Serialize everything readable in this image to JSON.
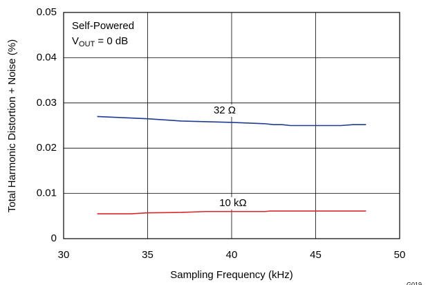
{
  "chart_data": {
    "type": "line",
    "x_label": "Sampling Frequency (kHz)",
    "y_label": "Total Harmonic Distortion + Noise (%)",
    "annotations": [
      "Self-Powered",
      {
        "main": "V",
        "sub": "OUT",
        "rest": " = 0 dB"
      }
    ],
    "figure_id": "G019",
    "xlim": [
      30,
      50
    ],
    "xticks": [
      30,
      35,
      40,
      45,
      50
    ],
    "ylim": [
      0,
      0.05
    ],
    "yticks": [
      0,
      0.01,
      0.02,
      0.03,
      0.04,
      0.05
    ],
    "grid": true,
    "series": [
      {
        "name": "32 Ω",
        "color": "#1f3a93",
        "x": [
          32,
          35,
          37,
          40,
          42,
          42.5,
          43,
          43.5,
          45,
          46.5,
          47.2,
          48
        ],
        "values": [
          0.027,
          0.0265,
          0.026,
          0.0257,
          0.0254,
          0.0252,
          0.0252,
          0.025,
          0.025,
          0.025,
          0.0252,
          0.0252
        ]
      },
      {
        "name": "10 kΩ",
        "color": "#d9262c",
        "x": [
          32,
          34,
          35,
          37,
          38.5,
          42,
          42.3,
          48
        ],
        "values": [
          0.0055,
          0.0055,
          0.0057,
          0.0058,
          0.006,
          0.006,
          0.0061,
          0.0061
        ]
      }
    ]
  }
}
